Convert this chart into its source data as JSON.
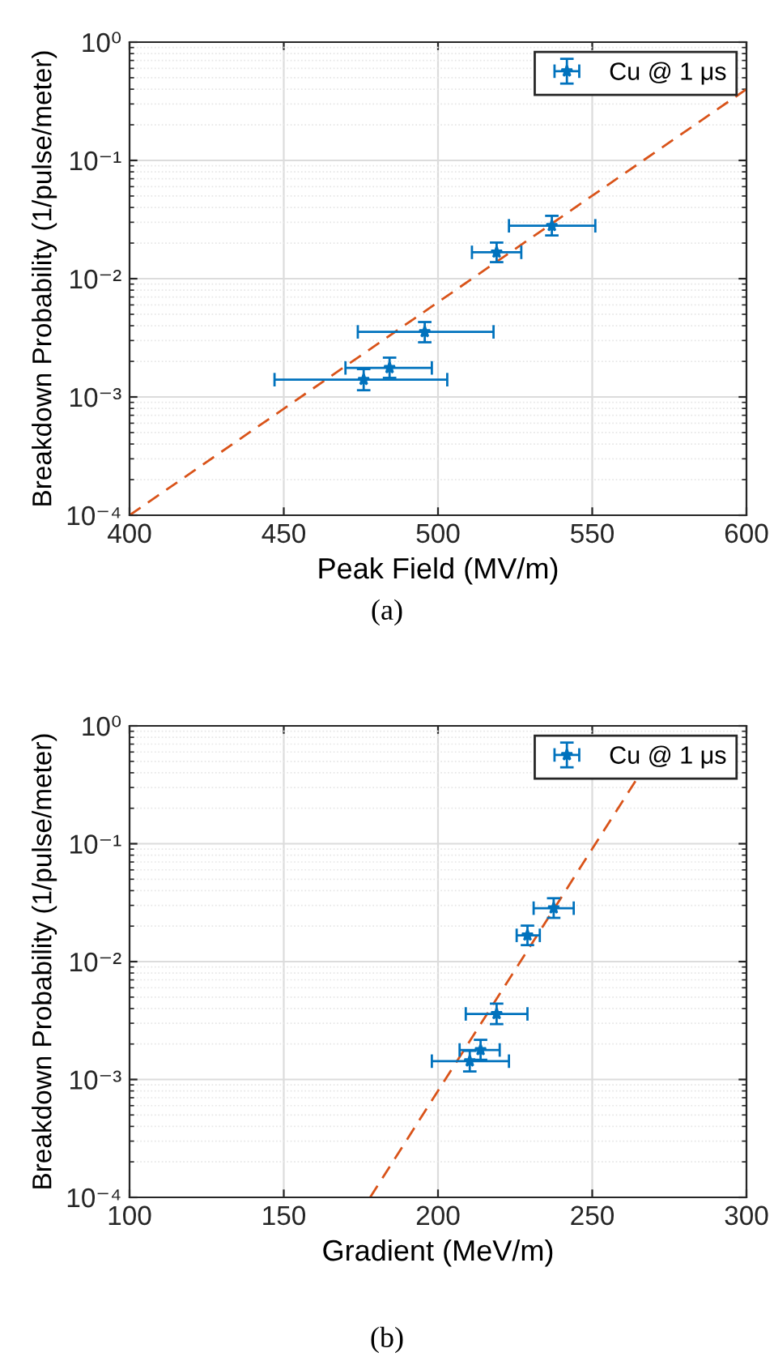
{
  "chart_data": [
    {
      "type": "scatter",
      "xlabel": "Peak Field (MV/m)",
      "ylabel": "Breakdown Probability (1/pulse/meter)",
      "annotations": [
        "(a)"
      ],
      "log": "y",
      "grid": true,
      "legend": "top right",
      "xlim": [
        400,
        600
      ],
      "xticks": [
        400,
        450,
        500,
        550,
        600
      ],
      "ylim": [
        0.0001,
        1
      ],
      "yticks": [
        {
          "value": 0.0001,
          "label": "10⁻⁴"
        },
        {
          "value": 0.001,
          "label": "10⁻³"
        },
        {
          "value": 0.01,
          "label": "10⁻²"
        },
        {
          "value": 0.1,
          "label": "10⁻¹"
        },
        {
          "value": 1,
          "label": "10⁰"
        }
      ],
      "series": [
        {
          "name": "Cu @ 1 μs",
          "color": "#0072bd",
          "marker": "star",
          "x": [
            475.9,
            484.3,
            495.7,
            519.0,
            536.9
          ],
          "values": [
            0.0014,
            0.00176,
            0.00355,
            0.0167,
            0.028
          ],
          "errors": [
            [
              0.00114,
              0.00172
            ],
            [
              0.00145,
              0.00215
            ],
            [
              0.0029,
              0.0043
            ],
            [
              0.0138,
              0.0202
            ],
            [
              0.0232,
              0.034
            ]
          ],
          "xerrors": [
            [
              447,
              503
            ],
            [
              470,
              498
            ],
            [
              474,
              518
            ],
            [
              511,
              527
            ],
            [
              523,
              551
            ]
          ]
        },
        {
          "type": "line",
          "color": "#d95319",
          "line_style": "dashed",
          "marker": "none",
          "x": [
            400,
            600
          ],
          "values": [
            0.0001,
            0.4
          ]
        }
      ]
    },
    {
      "type": "scatter",
      "xlabel": "Gradient (MeV/m)",
      "ylabel": "Breakdown Probability (1/pulse/meter)",
      "annotations": [
        "(b)"
      ],
      "log": "y",
      "grid": true,
      "legend": "top right",
      "xlim": [
        100,
        300
      ],
      "xticks": [
        100,
        150,
        200,
        250,
        300
      ],
      "ylim": [
        0.0001,
        1
      ],
      "yticks": [
        {
          "value": 0.0001,
          "label": "10⁻⁴"
        },
        {
          "value": 0.001,
          "label": "10⁻³"
        },
        {
          "value": 0.01,
          "label": "10⁻²"
        },
        {
          "value": 0.1,
          "label": "10⁻¹"
        },
        {
          "value": 1,
          "label": "10⁰"
        }
      ],
      "series": [
        {
          "name": "Cu @ 1 μs",
          "color": "#0072bd",
          "marker": "star",
          "x": [
            210.3,
            213.8,
            219.0,
            229.0,
            237.5
          ],
          "values": [
            0.00143,
            0.00178,
            0.0036,
            0.0167,
            0.0284
          ],
          "errors": [
            [
              0.00117,
              0.00175
            ],
            [
              0.00147,
              0.00217
            ],
            [
              0.00295,
              0.0044
            ],
            [
              0.0138,
              0.0202
            ],
            [
              0.0235,
              0.0345
            ]
          ],
          "xerrors": [
            [
              198,
              223
            ],
            [
              207,
              220
            ],
            [
              209,
              229
            ],
            [
              225.5,
              233
            ],
            [
              231,
              244
            ]
          ]
        },
        {
          "type": "line",
          "color": "#d95319",
          "line_style": "dashed",
          "marker": "none",
          "x": [
            178,
            264
          ],
          "values": [
            0.0001,
            0.34
          ]
        }
      ]
    }
  ]
}
